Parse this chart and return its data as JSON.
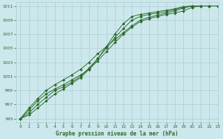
{
  "title": "Graphe pression niveau de la mer (hPa)",
  "background_color": "#cce8ec",
  "grid_color": "#aaccd4",
  "line_color": "#2d6b2d",
  "xlim": [
    -0.5,
    23
  ],
  "ylim": [
    994.5,
    1011.5
  ],
  "yticks": [
    995,
    997,
    999,
    1001,
    1003,
    1005,
    1007,
    1009,
    1011
  ],
  "xticks": [
    0,
    1,
    2,
    3,
    4,
    5,
    6,
    7,
    8,
    9,
    10,
    11,
    12,
    13,
    14,
    15,
    16,
    17,
    18,
    19,
    20,
    21,
    22,
    23
  ],
  "series": [
    [
      995.0,
      996.2,
      997.5,
      998.5,
      999.2,
      999.8,
      1000.5,
      1001.2,
      1002.0,
      1003.2,
      1004.5,
      1005.8,
      1007.0,
      1008.0,
      1008.8,
      1009.2,
      1009.5,
      1009.8,
      1010.0,
      1010.3,
      1010.8,
      1011.0,
      1011.0,
      1011.0
    ],
    [
      995.0,
      996.5,
      997.8,
      999.0,
      999.8,
      1000.5,
      1001.2,
      1002.0,
      1003.0,
      1004.2,
      1005.2,
      1006.2,
      1007.2,
      1008.2,
      1009.0,
      1009.4,
      1009.7,
      1010.0,
      1010.3,
      1010.7,
      1011.0,
      1011.0,
      1011.0,
      1011.0
    ],
    [
      995.0,
      995.8,
      997.0,
      998.0,
      999.0,
      999.5,
      1000.2,
      1001.0,
      1002.2,
      1003.5,
      1005.0,
      1006.5,
      1007.8,
      1009.0,
      1009.5,
      1009.8,
      1010.0,
      1010.2,
      1010.5,
      1010.8,
      1011.0,
      1011.0,
      1011.0,
      1011.0
    ],
    [
      995.0,
      995.5,
      996.5,
      997.5,
      998.5,
      999.2,
      1000.0,
      1000.8,
      1002.0,
      1003.5,
      1005.2,
      1007.0,
      1008.5,
      1009.5,
      1009.8,
      1010.0,
      1010.2,
      1010.4,
      1010.6,
      1010.9,
      1011.0,
      1011.0,
      1011.0,
      1011.0
    ]
  ]
}
